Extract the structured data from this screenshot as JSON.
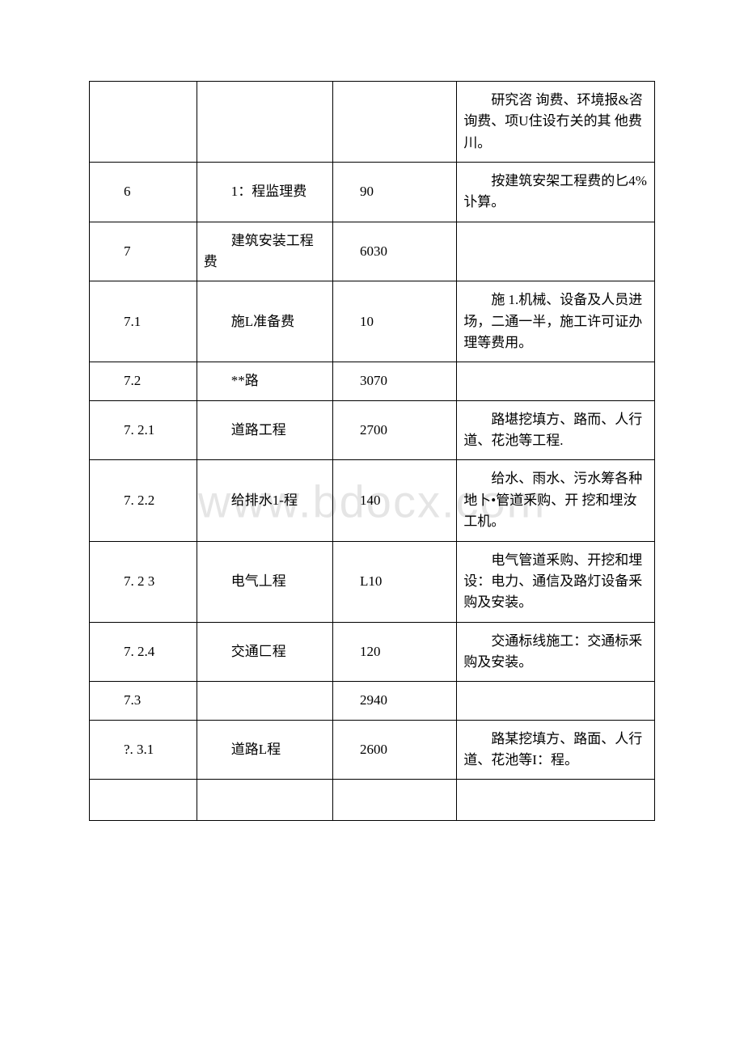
{
  "watermark": "www.bdocx.com",
  "rows": [
    {
      "c1": "",
      "c2": "",
      "c3": "",
      "c4": "研究咨 询费、环境报&咨询费、项U住设冇关的其 他费川。"
    },
    {
      "c1": "6",
      "c2": "1：程监理费",
      "c3": "90",
      "c4": "按建筑安架工程费的匕4%讣算。"
    },
    {
      "c1": "7",
      "c2": "建筑安装工程费",
      "c3": "6030",
      "c4": ""
    },
    {
      "c1": "7.1",
      "c2": "施L准备费",
      "c3": "10",
      "c4": "施 1.机械、设备及人员进场，二通一半，施工许可证办理等费用。"
    },
    {
      "c1": "7.2",
      "c2": "**路",
      "c3": "3070",
      "c4": ""
    },
    {
      "c1": "7. 2.1",
      "c2": "道路工程",
      "c3": "2700",
      "c4": "路堪挖填方、路而、人行道、花池等工程."
    },
    {
      "c1": "7. 2.2",
      "c2": "给排水1-程",
      "c3": "140",
      "c4": "给水、雨水、污水筹各种地卜•管道釆购、开 挖和埋汝工机。"
    },
    {
      "c1": "7. 2 3",
      "c2": "电气丄程",
      "c3": "L10",
      "c4": "电气管道釆购、开挖和埋设：电力、通信及路灯设备釆购及安装。"
    },
    {
      "c1": "7. 2.4",
      "c2": "交通匚程",
      "c3": "120",
      "c4": "交通标线施工：交通标釆购及安装。"
    },
    {
      "c1": "7.3",
      "c2": "",
      "c3": "2940",
      "c4": ""
    },
    {
      "c1": "?. 3.1",
      "c2": "道路L程",
      "c3": "2600",
      "c4": "路某挖填方、路面、人行道、花池等I：程。"
    },
    {
      "c1": "",
      "c2": "",
      "c3": "",
      "c4": ""
    }
  ]
}
